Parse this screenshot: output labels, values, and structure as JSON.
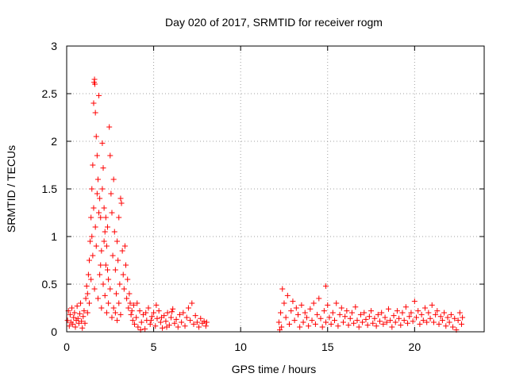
{
  "chart_data": {
    "type": "scatter",
    "title": "Day 020 of 2017, SRMTID for receiver rogm",
    "xlabel": "GPS time / hours",
    "ylabel": "SRMTID / TECUs",
    "xlim": [
      0,
      24
    ],
    "ylim": [
      0,
      3
    ],
    "xticks": [
      0,
      5,
      10,
      15,
      20
    ],
    "xtick_labels": [
      "0",
      "5",
      "10",
      "15",
      "20"
    ],
    "yticks": [
      0,
      0.5,
      1,
      1.5,
      2,
      2.5,
      3
    ],
    "ytick_labels": [
      "0",
      "0.5",
      "1",
      "1.5",
      "2",
      "2.5",
      "3"
    ],
    "grid": true,
    "marker": "+",
    "color": "#ff0000",
    "series": [
      {
        "name": "SRMTID",
        "description": "dense scatter; active 0-8.1 h with peak ~2.65 near 1.6 h, gap 8.1-12.2 h, active 12.2-22.8 h",
        "points": [
          [
            0.05,
            0.12
          ],
          [
            0.1,
            0.22
          ],
          [
            0.15,
            0.06
          ],
          [
            0.2,
            0.18
          ],
          [
            0.25,
            0.1
          ],
          [
            0.3,
            0.25
          ],
          [
            0.35,
            0.08
          ],
          [
            0.4,
            0.15
          ],
          [
            0.45,
            0.2
          ],
          [
            0.5,
            0.05
          ],
          [
            0.55,
            0.12
          ],
          [
            0.6,
            0.27
          ],
          [
            0.65,
            0.14
          ],
          [
            0.7,
            0.09
          ],
          [
            0.75,
            0.19
          ],
          [
            0.8,
            0.3
          ],
          [
            0.85,
            0.11
          ],
          [
            0.9,
            0.04
          ],
          [
            0.95,
            0.16
          ],
          [
            1.0,
            0.22
          ],
          [
            1.05,
            0.09
          ],
          [
            1.1,
            0.35
          ],
          [
            1.15,
            0.48
          ],
          [
            1.2,
            0.2
          ],
          [
            1.25,
            0.6
          ],
          [
            1.3,
            0.75
          ],
          [
            1.35,
            0.95
          ],
          [
            1.4,
            1.2
          ],
          [
            1.45,
            1.5
          ],
          [
            1.5,
            1.75
          ],
          [
            1.55,
            2.4
          ],
          [
            1.58,
            2.62
          ],
          [
            1.6,
            2.65
          ],
          [
            1.62,
            2.6
          ],
          [
            1.65,
            2.3
          ],
          [
            1.7,
            2.05
          ],
          [
            1.75,
            1.85
          ],
          [
            1.8,
            1.6
          ],
          [
            1.85,
            2.48
          ],
          [
            1.9,
            1.4
          ],
          [
            1.95,
            1.2
          ],
          [
            2.0,
            0.85
          ],
          [
            2.05,
            1.98
          ],
          [
            2.1,
            1.72
          ],
          [
            2.15,
            1.3
          ],
          [
            2.2,
            1.05
          ],
          [
            2.25,
            0.7
          ],
          [
            2.3,
            0.9
          ],
          [
            2.35,
            1.1
          ],
          [
            2.4,
            0.55
          ],
          [
            2.45,
            2.15
          ],
          [
            2.5,
            1.85
          ],
          [
            2.55,
            1.45
          ],
          [
            2.6,
            1.25
          ],
          [
            2.65,
            0.8
          ],
          [
            2.7,
            1.6
          ],
          [
            2.75,
            1.05
          ],
          [
            2.8,
            0.65
          ],
          [
            2.85,
            0.4
          ],
          [
            2.9,
            0.95
          ],
          [
            2.95,
            0.75
          ],
          [
            3.0,
            1.2
          ],
          [
            3.05,
            0.5
          ],
          [
            3.1,
            1.4
          ],
          [
            3.15,
            1.35
          ],
          [
            3.2,
            0.85
          ],
          [
            3.25,
            0.6
          ],
          [
            3.3,
            0.45
          ],
          [
            3.35,
            0.9
          ],
          [
            3.4,
            0.7
          ],
          [
            3.45,
            0.35
          ],
          [
            3.5,
            0.55
          ],
          [
            3.55,
            0.25
          ],
          [
            3.6,
            0.4
          ],
          [
            3.65,
            0.3
          ],
          [
            3.7,
            0.18
          ],
          [
            3.75,
            0.22
          ],
          [
            3.8,
            0.12
          ],
          [
            3.85,
            0.28
          ],
          [
            3.9,
            0.08
          ],
          [
            1.2,
            0.4
          ],
          [
            1.3,
            0.3
          ],
          [
            1.4,
            0.55
          ],
          [
            1.5,
            0.8
          ],
          [
            1.6,
            0.45
          ],
          [
            1.7,
            0.9
          ],
          [
            1.8,
            0.35
          ],
          [
            1.9,
            0.6
          ],
          [
            2.0,
            0.25
          ],
          [
            2.1,
            0.5
          ],
          [
            2.2,
            0.38
          ],
          [
            2.3,
            0.2
          ],
          [
            2.4,
            0.3
          ],
          [
            2.5,
            0.45
          ],
          [
            2.6,
            0.15
          ],
          [
            2.7,
            0.25
          ],
          [
            2.8,
            0.2
          ],
          [
            2.9,
            0.12
          ],
          [
            3.0,
            0.3
          ],
          [
            3.1,
            0.18
          ],
          [
            1.45,
            1.0
          ],
          [
            1.55,
            1.3
          ],
          [
            1.65,
            1.1
          ],
          [
            1.75,
            1.45
          ],
          [
            1.85,
            1.25
          ],
          [
            1.95,
            0.7
          ],
          [
            2.05,
            1.5
          ],
          [
            2.15,
            0.95
          ],
          [
            2.25,
            1.2
          ],
          [
            2.35,
            0.65
          ],
          [
            4.0,
            0.15
          ],
          [
            4.1,
            0.05
          ],
          [
            4.2,
            0.22
          ],
          [
            4.3,
            0.1
          ],
          [
            4.4,
            0.18
          ],
          [
            4.5,
            0.03
          ],
          [
            4.6,
            0.12
          ],
          [
            4.7,
            0.25
          ],
          [
            4.8,
            0.08
          ],
          [
            4.9,
            0.16
          ],
          [
            5.0,
            0.2
          ],
          [
            5.1,
            0.06
          ],
          [
            5.2,
            0.14
          ],
          [
            5.3,
            0.22
          ],
          [
            5.4,
            0.1
          ],
          [
            5.5,
            0.04
          ],
          [
            5.6,
            0.17
          ],
          [
            5.7,
            0.11
          ],
          [
            5.8,
            0.2
          ],
          [
            5.9,
            0.07
          ],
          [
            6.0,
            0.15
          ],
          [
            6.1,
            0.24
          ],
          [
            6.2,
            0.09
          ],
          [
            6.3,
            0.13
          ],
          [
            6.4,
            0.05
          ],
          [
            6.5,
            0.18
          ],
          [
            6.6,
            0.1
          ],
          [
            6.7,
            0.2
          ],
          [
            6.8,
            0.06
          ],
          [
            6.9,
            0.15
          ],
          [
            7.0,
            0.25
          ],
          [
            7.1,
            0.12
          ],
          [
            7.2,
            0.3
          ],
          [
            7.3,
            0.08
          ],
          [
            7.4,
            0.17
          ],
          [
            7.5,
            0.1
          ],
          [
            7.6,
            0.05
          ],
          [
            7.7,
            0.14
          ],
          [
            7.8,
            0.09
          ],
          [
            7.9,
            0.11
          ],
          [
            8.0,
            0.06
          ],
          [
            8.05,
            0.1
          ],
          [
            4.05,
            0.3
          ],
          [
            4.25,
            0.02
          ],
          [
            4.55,
            0.2
          ],
          [
            4.85,
            0.12
          ],
          [
            5.15,
            0.28
          ],
          [
            5.45,
            0.15
          ],
          [
            5.75,
            0.05
          ],
          [
            6.05,
            0.21
          ],
          [
            12.2,
            0.1
          ],
          [
            12.3,
            0.2
          ],
          [
            12.4,
            0.45
          ],
          [
            12.5,
            0.3
          ],
          [
            12.6,
            0.15
          ],
          [
            12.7,
            0.38
          ],
          [
            12.8,
            0.08
          ],
          [
            12.9,
            0.22
          ],
          [
            13.0,
            0.32
          ],
          [
            13.1,
            0.12
          ],
          [
            13.2,
            0.25
          ],
          [
            13.3,
            0.18
          ],
          [
            13.4,
            0.05
          ],
          [
            13.5,
            0.28
          ],
          [
            13.6,
            0.1
          ],
          [
            13.7,
            0.2
          ],
          [
            13.8,
            0.15
          ],
          [
            13.9,
            0.06
          ],
          [
            14.0,
            0.24
          ],
          [
            14.1,
            0.12
          ],
          [
            14.2,
            0.3
          ],
          [
            14.3,
            0.08
          ],
          [
            14.4,
            0.18
          ],
          [
            14.5,
            0.35
          ],
          [
            14.6,
            0.14
          ],
          [
            14.7,
            0.05
          ],
          [
            14.8,
            0.22
          ],
          [
            14.9,
            0.1
          ],
          [
            15.0,
            0.28
          ],
          [
            15.1,
            0.15
          ],
          [
            14.9,
            0.48
          ],
          [
            15.2,
            0.08
          ],
          [
            15.3,
            0.2
          ],
          [
            15.4,
            0.12
          ],
          [
            15.5,
            0.3
          ],
          [
            15.6,
            0.06
          ],
          [
            15.7,
            0.18
          ],
          [
            15.8,
            0.25
          ],
          [
            15.9,
            0.1
          ],
          [
            16.0,
            0.16
          ],
          [
            16.1,
            0.22
          ],
          [
            16.2,
            0.07
          ],
          [
            16.3,
            0.14
          ],
          [
            16.4,
            0.2
          ],
          [
            16.5,
            0.09
          ],
          [
            16.6,
            0.26
          ],
          [
            16.7,
            0.12
          ],
          [
            16.8,
            0.05
          ],
          [
            16.9,
            0.18
          ],
          [
            17.0,
            0.1
          ],
          [
            17.1,
            0.2
          ],
          [
            17.2,
            0.13
          ],
          [
            17.3,
            0.07
          ],
          [
            17.4,
            0.16
          ],
          [
            17.5,
            0.22
          ],
          [
            17.6,
            0.09
          ],
          [
            17.7,
            0.14
          ],
          [
            17.8,
            0.06
          ],
          [
            17.9,
            0.18
          ],
          [
            18.0,
            0.11
          ],
          [
            18.1,
            0.2
          ],
          [
            18.2,
            0.08
          ],
          [
            18.3,
            0.15
          ],
          [
            18.4,
            0.1
          ],
          [
            18.5,
            0.24
          ],
          [
            18.6,
            0.12
          ],
          [
            18.7,
            0.05
          ],
          [
            18.8,
            0.17
          ],
          [
            18.9,
            0.1
          ],
          [
            19.0,
            0.22
          ],
          [
            19.1,
            0.14
          ],
          [
            19.2,
            0.07
          ],
          [
            19.3,
            0.2
          ],
          [
            19.4,
            0.12
          ],
          [
            19.5,
            0.26
          ],
          [
            19.6,
            0.09
          ],
          [
            19.7,
            0.16
          ],
          [
            19.8,
            0.2
          ],
          [
            19.9,
            0.11
          ],
          [
            20.0,
            0.32
          ],
          [
            20.1,
            0.15
          ],
          [
            20.2,
            0.22
          ],
          [
            20.3,
            0.08
          ],
          [
            20.4,
            0.18
          ],
          [
            20.5,
            0.12
          ],
          [
            20.6,
            0.25
          ],
          [
            20.7,
            0.1
          ],
          [
            20.8,
            0.2
          ],
          [
            20.9,
            0.14
          ],
          [
            21.0,
            0.28
          ],
          [
            21.1,
            0.1
          ],
          [
            21.2,
            0.18
          ],
          [
            21.3,
            0.22
          ],
          [
            21.4,
            0.08
          ],
          [
            21.5,
            0.16
          ],
          [
            21.6,
            0.12
          ],
          [
            21.7,
            0.2
          ],
          [
            21.8,
            0.06
          ],
          [
            21.9,
            0.15
          ],
          [
            22.0,
            0.1
          ],
          [
            22.1,
            0.18
          ],
          [
            22.2,
            0.05
          ],
          [
            22.3,
            0.14
          ],
          [
            22.4,
            0.02
          ],
          [
            22.5,
            0.12
          ],
          [
            22.6,
            0.2
          ],
          [
            22.7,
            0.08
          ],
          [
            22.75,
            0.15
          ],
          [
            12.25,
            0.02
          ],
          [
            12.35,
            0.05
          ]
        ]
      }
    ]
  }
}
